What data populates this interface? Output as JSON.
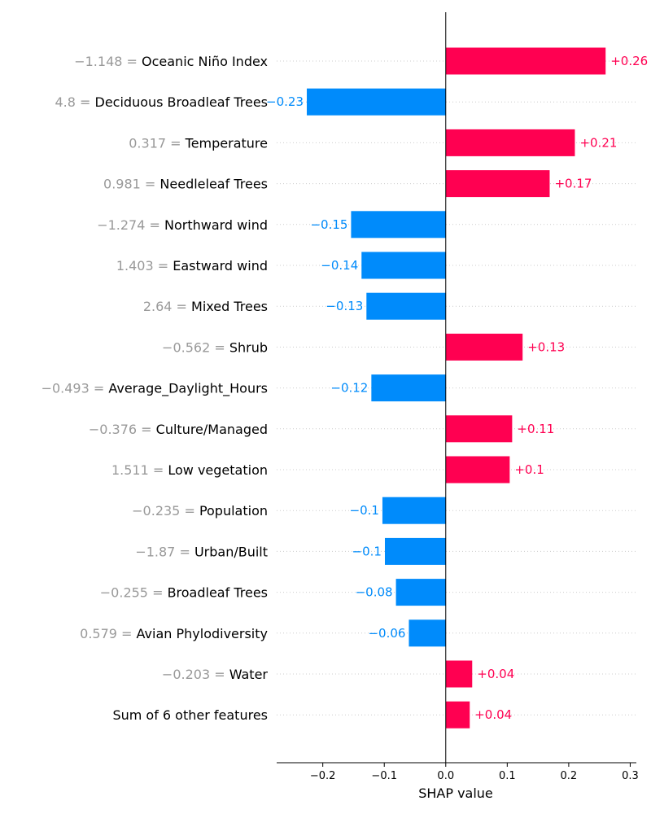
{
  "chart_data": {
    "type": "bar",
    "orientation": "horizontal",
    "xlabel": "SHAP value",
    "xlim": [
      -0.275,
      0.31
    ],
    "xticks": [
      -0.2,
      -0.1,
      0.0,
      0.1,
      0.2,
      0.3
    ],
    "xtick_labels": [
      "−0.2",
      "−0.1",
      "0.0",
      "0.1",
      "0.2",
      "0.3"
    ],
    "grid": "horizontal dotted row lines",
    "colors": {
      "positive": "#ff0051",
      "negative": "#008bfb",
      "feature_value": "#999999"
    },
    "features": [
      {
        "value": "−1.148 = ",
        "name": "Oceanic Niño Index",
        "shap": 0.26,
        "label": "+0.26"
      },
      {
        "value": "4.8 = ",
        "name": "Deciduous Broadleaf Trees",
        "shap": -0.226,
        "label": "−0.23"
      },
      {
        "value": "0.317 = ",
        "name": "Temperature",
        "shap": 0.21,
        "label": "+0.21"
      },
      {
        "value": "0.981 = ",
        "name": "Needleleaf Trees",
        "shap": 0.169,
        "label": "+0.17"
      },
      {
        "value": "−1.274 = ",
        "name": "Northward wind",
        "shap": -0.154,
        "label": "−0.15"
      },
      {
        "value": "1.403 = ",
        "name": "Eastward wind",
        "shap": -0.137,
        "label": "−0.14"
      },
      {
        "value": "2.64 = ",
        "name": "Mixed Trees",
        "shap": -0.129,
        "label": "−0.13"
      },
      {
        "value": "−0.562 = ",
        "name": "Shrub",
        "shap": 0.125,
        "label": "+0.13"
      },
      {
        "value": "−0.493 = ",
        "name": "Average_Daylight_Hours",
        "shap": -0.121,
        "label": "−0.12"
      },
      {
        "value": "−0.376 = ",
        "name": "Culture/Managed",
        "shap": 0.108,
        "label": "+0.11"
      },
      {
        "value": "1.511 = ",
        "name": "Low vegetation",
        "shap": 0.104,
        "label": "+0.1"
      },
      {
        "value": "−0.235 = ",
        "name": "Population",
        "shap": -0.103,
        "label": "−0.1"
      },
      {
        "value": "−1.87 = ",
        "name": "Urban/Built",
        "shap": -0.099,
        "label": "−0.1"
      },
      {
        "value": "−0.255 = ",
        "name": "Broadleaf Trees",
        "shap": -0.081,
        "label": "−0.08"
      },
      {
        "value": "0.579 = ",
        "name": "Avian Phylodiversity",
        "shap": -0.06,
        "label": "−0.06"
      },
      {
        "value": "−0.203 = ",
        "name": "Water",
        "shap": 0.043,
        "label": "+0.04"
      },
      {
        "value": "",
        "name": "Sum of 6 other features",
        "shap": 0.039,
        "label": "+0.04"
      }
    ]
  }
}
